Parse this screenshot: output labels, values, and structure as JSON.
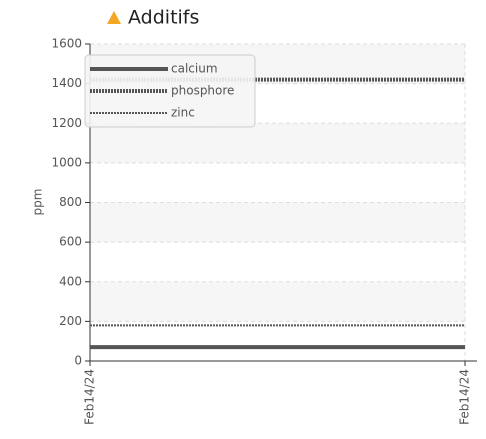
{
  "chart_data": {
    "type": "line",
    "title": "Additifs",
    "y_label": "ppm",
    "x": [
      "Feb14/24",
      "Feb14/24"
    ],
    "series": [
      {
        "name": "calcium",
        "color": "#555555",
        "line_style": "solid",
        "values": [
          70,
          70
        ]
      },
      {
        "name": "phosphore",
        "color": "#555555",
        "line_style": "dotted",
        "values": [
          1420,
          1420
        ]
      },
      {
        "name": "zinc",
        "color": "#555555",
        "line_style": "dashed",
        "values": [
          180,
          180
        ]
      }
    ],
    "ylim": [
      0,
      1600
    ],
    "yticks": [
      0,
      200,
      400,
      600,
      800,
      1000,
      1200,
      1400,
      1600
    ],
    "grid": true,
    "legend": "top-left"
  }
}
